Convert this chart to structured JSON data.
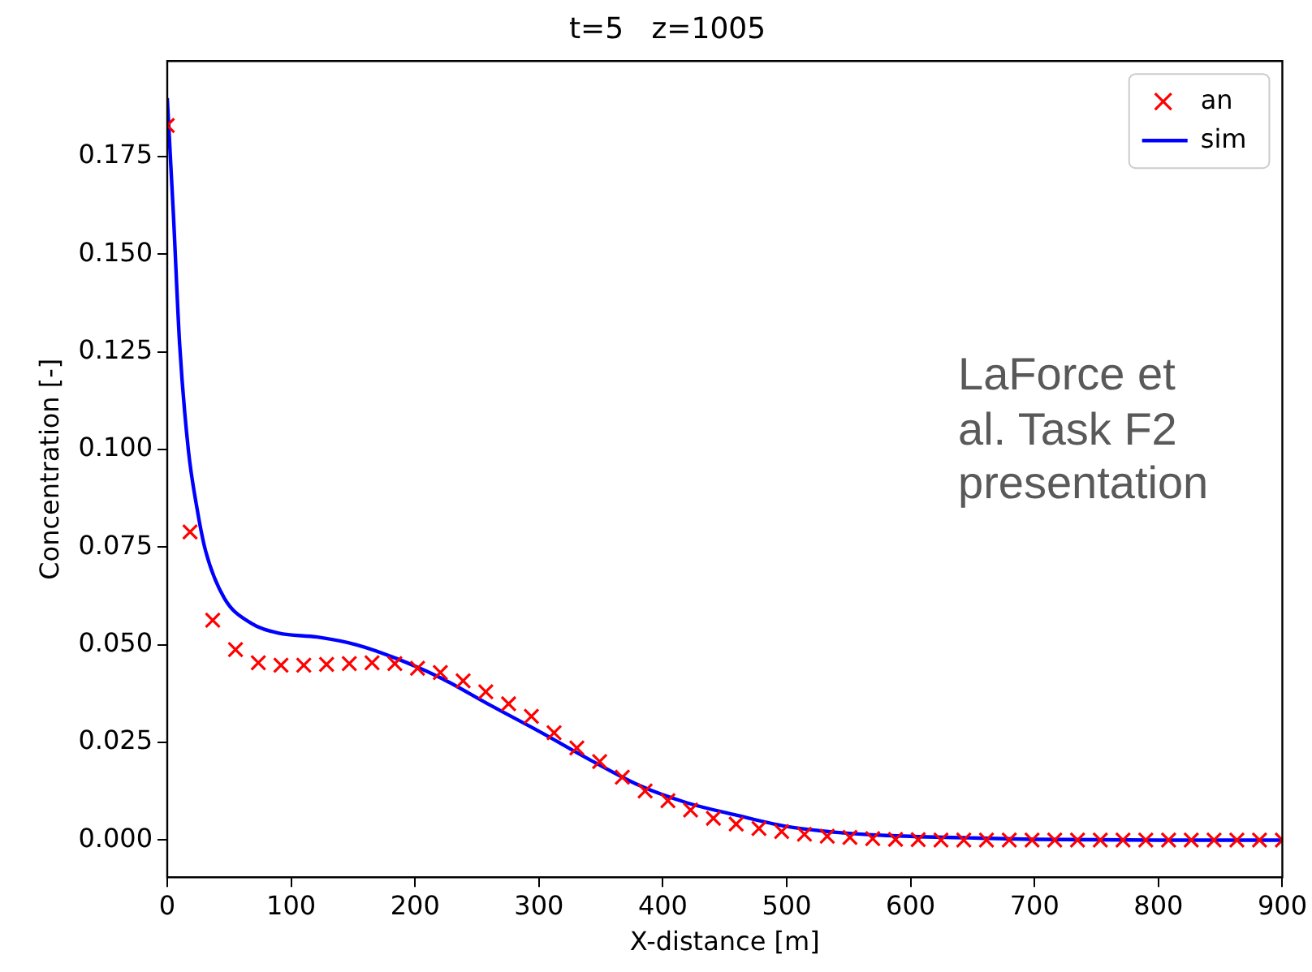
{
  "chart_data": {
    "type": "line",
    "title": "t=5   z=1005",
    "xlabel": "X-distance [m]",
    "ylabel": "Concentration [-]",
    "xlim": [
      0,
      900
    ],
    "xticks": [
      0,
      100,
      200,
      300,
      400,
      500,
      600,
      700,
      800,
      900
    ],
    "ylim": [
      -0.0095,
      0.1995
    ],
    "yticks": [
      {
        "value": 0,
        "label": "0.000"
      },
      {
        "value": 0.025,
        "label": "0.025"
      },
      {
        "value": 0.05,
        "label": "0.050"
      },
      {
        "value": 0.075,
        "label": "0.075"
      },
      {
        "value": 0.1,
        "label": "0.100"
      },
      {
        "value": 0.125,
        "label": "0.125"
      },
      {
        "value": 0.15,
        "label": "0.150"
      },
      {
        "value": 0.175,
        "label": "0.175"
      }
    ],
    "grid": false,
    "legend": "top right",
    "annotations": [
      "LaForce et al. Task F2 presentation"
    ],
    "series": [
      {
        "name": "an",
        "type": "scatter",
        "marker": "cross",
        "color": "#ff0000",
        "x": [
          0,
          18.4,
          36.7,
          55.1,
          73.5,
          91.8,
          110.2,
          128.6,
          146.9,
          165.3,
          183.7,
          202,
          220.4,
          238.8,
          257.1,
          275.5,
          293.9,
          312.2,
          330.6,
          349,
          367.3,
          385.7,
          404.1,
          422.4,
          440.8,
          459.2,
          477.6,
          495.9,
          514.3,
          532.7,
          551,
          569.4,
          587.8,
          606.1,
          624.5,
          642.9,
          661.2,
          679.6,
          698,
          716.3,
          734.7,
          753.1,
          771.4,
          789.8,
          808.2,
          826.5,
          844.9,
          863.3,
          881.6,
          900
        ],
        "values": [
          0.183,
          0.0789,
          0.0563,
          0.0488,
          0.0454,
          0.0448,
          0.0448,
          0.045,
          0.0452,
          0.0454,
          0.0452,
          0.044,
          0.0429,
          0.0408,
          0.038,
          0.0349,
          0.0317,
          0.0275,
          0.0236,
          0.0201,
          0.0161,
          0.0126,
          0.0101,
          0.0077,
          0.0056,
          0.0041,
          0.003,
          0.0022,
          0.0015,
          0.001,
          0.0007,
          0.0004,
          0.0002,
          0.0001,
          0,
          0,
          0,
          0,
          0,
          0,
          0,
          0,
          0,
          0,
          0,
          0,
          0,
          0,
          0,
          0
        ]
      },
      {
        "name": "sim",
        "type": "line",
        "marker": "none",
        "line_style": "solid",
        "color": "#0000ff",
        "x": [
          0,
          5,
          10,
          17,
          24,
          31,
          46,
          68,
          90,
          121,
          153,
          185,
          221,
          261,
          301,
          341,
          381,
          420,
          458,
          500,
          540,
          580,
          646,
          700,
          800,
          900
        ],
        "values": [
          0.19,
          0.16,
          0.127,
          0.1,
          0.085,
          0.074,
          0.062,
          0.0555,
          0.053,
          0.052,
          0.05,
          0.0465,
          0.0415,
          0.0345,
          0.0277,
          0.0206,
          0.014,
          0.0095,
          0.0065,
          0.0035,
          0.002,
          0.0012,
          0.0006,
          0.0002,
          0,
          0
        ]
      }
    ]
  }
}
